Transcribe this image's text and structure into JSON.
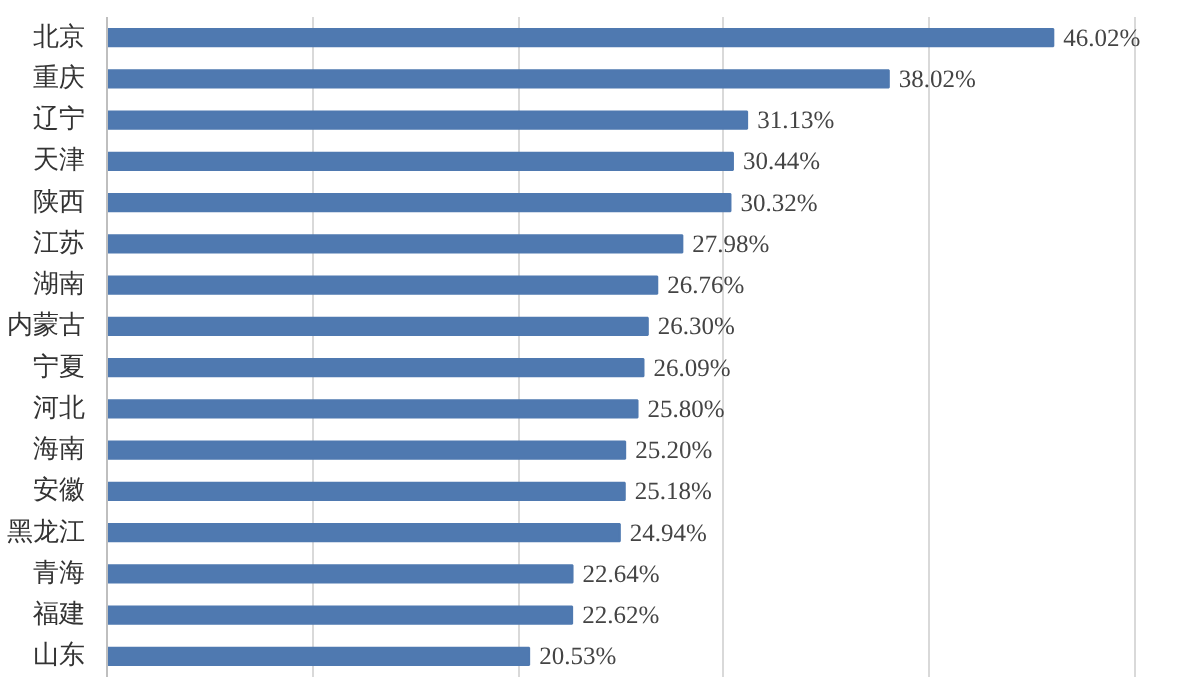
{
  "chart_data": {
    "type": "bar",
    "orientation": "horizontal",
    "categories": [
      "北京",
      "重庆",
      "辽宁",
      "天津",
      "陕西",
      "江苏",
      "湖南",
      "内蒙古",
      "宁夏",
      "河北",
      "海南",
      "安徽",
      "黑龙江",
      "青海",
      "福建",
      "山东"
    ],
    "values": [
      46.02,
      38.02,
      31.13,
      30.44,
      30.32,
      27.98,
      26.76,
      26.3,
      26.09,
      25.8,
      25.2,
      25.18,
      24.94,
      22.64,
      22.62,
      20.53
    ],
    "value_labels": [
      "46.02%",
      "38.02%",
      "31.13%",
      "30.44%",
      "30.32%",
      "27.98%",
      "26.76%",
      "26.30%",
      "26.09%",
      "25.80%",
      "25.20%",
      "25.18%",
      "24.94%",
      "22.64%",
      "22.62%",
      "20.53%"
    ],
    "color": "#4f79b0",
    "grid": "x",
    "tick_labels": "y"
  }
}
